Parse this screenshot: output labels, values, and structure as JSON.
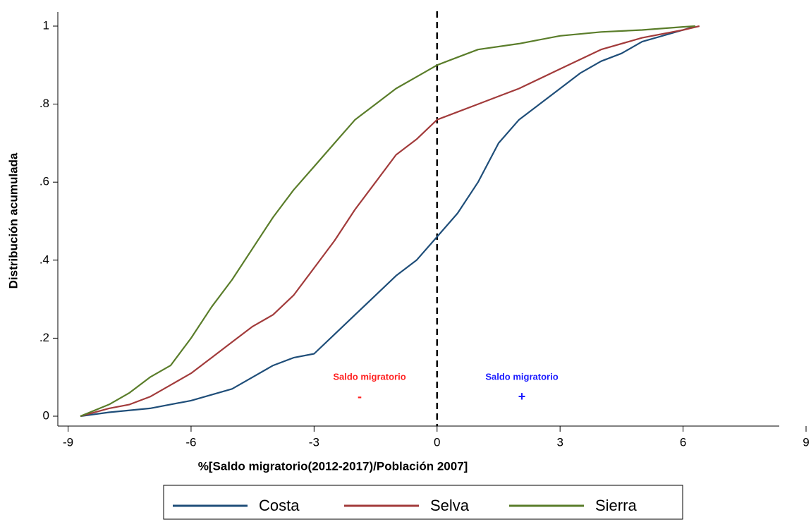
{
  "chart_data": {
    "type": "line",
    "xlabel": "%[Saldo migratorio(2012-2017)/Población 2007]",
    "ylabel": "Distribución acumulada",
    "xlim": [
      -9.25,
      9
    ],
    "xticks": [
      -9,
      -6,
      -3,
      0,
      3,
      6,
      9
    ],
    "ylim": [
      0,
      1
    ],
    "yticks": [
      0,
      {
        "value": 0.2,
        "label": ".2"
      },
      {
        "value": 0.4,
        "label": ".4"
      },
      {
        "value": 0.6,
        "label": ".6"
      },
      {
        "value": 0.8,
        "label": ".8"
      },
      1
    ],
    "reference_line": 0,
    "annotations": [
      {
        "text": "Saldo migratorio",
        "color": "#ff2020"
      },
      {
        "text": "-",
        "color": "#ff2020"
      },
      {
        "text": "Saldo migratorio",
        "color": "#1a1aff"
      },
      {
        "text": "+",
        "color": "#1a1aff"
      }
    ],
    "series": [
      {
        "name": "Costa",
        "color": "#1f4e79",
        "x": [
          -8.7,
          -8,
          -7,
          -6,
          -5,
          -4.5,
          -4,
          -3.5,
          -3,
          -2.5,
          -2,
          -1.5,
          -1,
          -0.5,
          0,
          0.5,
          1,
          1.5,
          2,
          2.5,
          3,
          3.5,
          4,
          4.5,
          5,
          6,
          6.3
        ],
        "values": [
          0,
          0.01,
          0.02,
          0.04,
          0.07,
          0.1,
          0.13,
          0.15,
          0.16,
          0.21,
          0.26,
          0.31,
          0.36,
          0.4,
          0.46,
          0.52,
          0.6,
          0.7,
          0.76,
          0.8,
          0.84,
          0.88,
          0.91,
          0.93,
          0.96,
          0.99,
          1
        ]
      },
      {
        "name": "Selva",
        "color": "#a23b3b",
        "x": [
          -8.7,
          -8,
          -7.5,
          -7,
          -6.5,
          -6,
          -5.5,
          -5,
          -4.5,
          -4,
          -3.5,
          -3,
          -2.5,
          -2,
          -1.5,
          -1,
          -0.5,
          0,
          0.5,
          1,
          1.5,
          2,
          3,
          4,
          5,
          6,
          6.4
        ],
        "values": [
          0,
          0.02,
          0.03,
          0.05,
          0.08,
          0.11,
          0.15,
          0.19,
          0.23,
          0.26,
          0.31,
          0.38,
          0.45,
          0.53,
          0.6,
          0.67,
          0.71,
          0.76,
          0.78,
          0.8,
          0.82,
          0.84,
          0.89,
          0.94,
          0.97,
          0.99,
          1
        ]
      },
      {
        "name": "Sierra",
        "color": "#5a7d2a",
        "x": [
          -8.7,
          -8,
          -7.5,
          -7,
          -6.5,
          -6,
          -5.5,
          -5,
          -4.5,
          -4,
          -3.5,
          -3,
          -2.5,
          -2,
          -1.5,
          -1,
          -0.5,
          0,
          0.5,
          1,
          2,
          3,
          4,
          5,
          6,
          6.3
        ],
        "values": [
          0,
          0.03,
          0.06,
          0.1,
          0.13,
          0.2,
          0.28,
          0.35,
          0.43,
          0.51,
          0.58,
          0.64,
          0.7,
          0.76,
          0.8,
          0.84,
          0.87,
          0.9,
          0.92,
          0.94,
          0.955,
          0.975,
          0.985,
          0.99,
          0.998,
          1
        ]
      }
    ]
  }
}
